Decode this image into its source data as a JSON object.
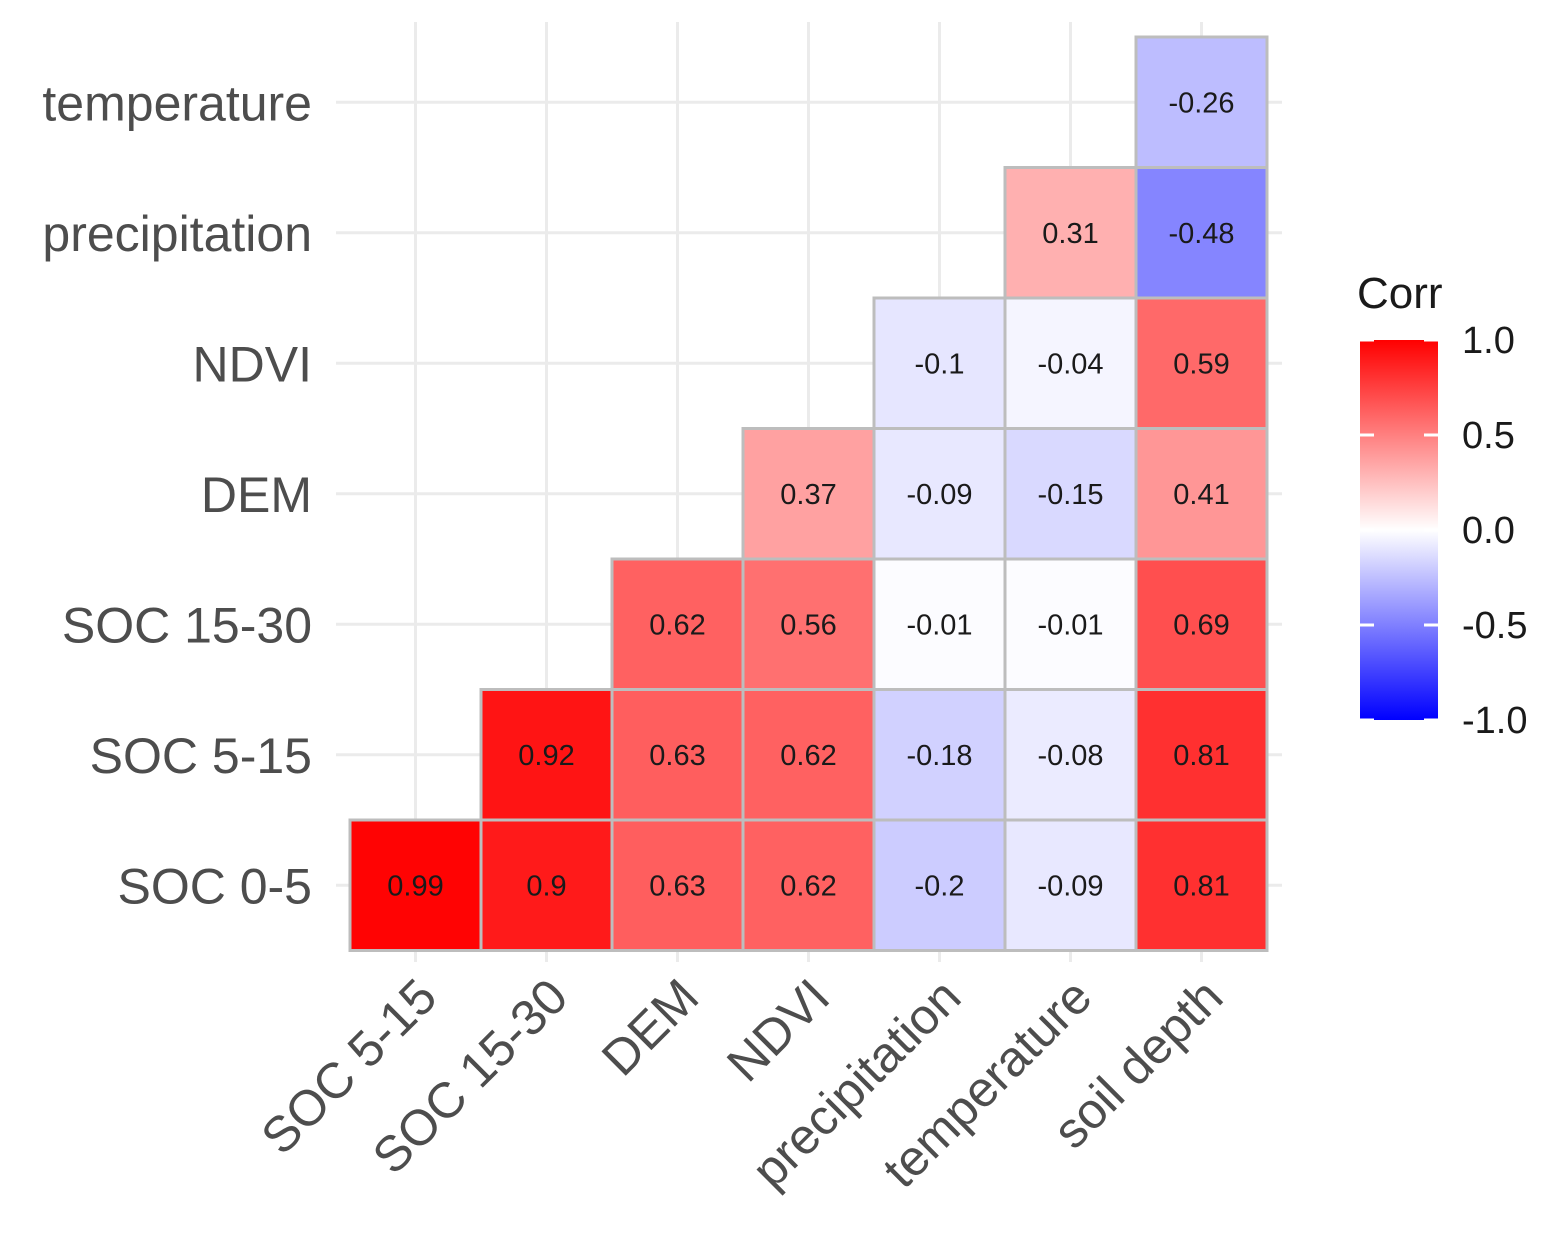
{
  "chart_data": {
    "type": "heatmap",
    "title": "",
    "xlabel": "",
    "ylabel": "",
    "x_categories": [
      "SOC 5-15",
      "SOC 15-30",
      "DEM",
      "NDVI",
      "precipitation",
      "temperature",
      "soil depth"
    ],
    "y_categories": [
      "SOC 0-5",
      "SOC 5-15",
      "SOC 15-30",
      "DEM",
      "NDVI",
      "precipitation",
      "temperature"
    ],
    "cells": [
      {
        "x": "SOC 5-15",
        "y": "SOC 0-5",
        "value": 0.99
      },
      {
        "x": "SOC 15-30",
        "y": "SOC 0-5",
        "value": 0.9
      },
      {
        "x": "DEM",
        "y": "SOC 0-5",
        "value": 0.63
      },
      {
        "x": "NDVI",
        "y": "SOC 0-5",
        "value": 0.62
      },
      {
        "x": "precipitation",
        "y": "SOC 0-5",
        "value": -0.2
      },
      {
        "x": "temperature",
        "y": "SOC 0-5",
        "value": -0.09
      },
      {
        "x": "soil depth",
        "y": "SOC 0-5",
        "value": 0.81
      },
      {
        "x": "SOC 15-30",
        "y": "SOC 5-15",
        "value": 0.92
      },
      {
        "x": "DEM",
        "y": "SOC 5-15",
        "value": 0.63
      },
      {
        "x": "NDVI",
        "y": "SOC 5-15",
        "value": 0.62
      },
      {
        "x": "precipitation",
        "y": "SOC 5-15",
        "value": -0.18
      },
      {
        "x": "temperature",
        "y": "SOC 5-15",
        "value": -0.08
      },
      {
        "x": "soil depth",
        "y": "SOC 5-15",
        "value": 0.81
      },
      {
        "x": "DEM",
        "y": "SOC 15-30",
        "value": 0.62
      },
      {
        "x": "NDVI",
        "y": "SOC 15-30",
        "value": 0.56
      },
      {
        "x": "precipitation",
        "y": "SOC 15-30",
        "value": -0.01
      },
      {
        "x": "temperature",
        "y": "SOC 15-30",
        "value": -0.01
      },
      {
        "x": "soil depth",
        "y": "SOC 15-30",
        "value": 0.69
      },
      {
        "x": "NDVI",
        "y": "DEM",
        "value": 0.37
      },
      {
        "x": "precipitation",
        "y": "DEM",
        "value": -0.09
      },
      {
        "x": "temperature",
        "y": "DEM",
        "value": -0.15
      },
      {
        "x": "soil depth",
        "y": "DEM",
        "value": 0.41
      },
      {
        "x": "precipitation",
        "y": "NDVI",
        "value": -0.1
      },
      {
        "x": "temperature",
        "y": "NDVI",
        "value": -0.04
      },
      {
        "x": "soil depth",
        "y": "NDVI",
        "value": 0.59
      },
      {
        "x": "temperature",
        "y": "precipitation",
        "value": 0.31
      },
      {
        "x": "soil depth",
        "y": "precipitation",
        "value": -0.48
      },
      {
        "x": "soil depth",
        "y": "temperature",
        "value": -0.26
      }
    ],
    "legend": {
      "title": "Corr",
      "position": "right",
      "range": [
        -1.0,
        1.0
      ],
      "ticks": [
        1.0,
        0.5,
        0.0,
        -0.5,
        -1.0
      ],
      "tick_labels": [
        "1.0",
        "0.5",
        "0.0",
        "-0.5",
        "-1.0"
      ],
      "colors": {
        "low": "#0000ff",
        "mid": "#ffffff",
        "high": "#ff0000"
      }
    }
  },
  "colors": {
    "cell_border": "#bdbdbd",
    "grid": "#ebebeb",
    "axis_text": "#4d4d4d"
  }
}
